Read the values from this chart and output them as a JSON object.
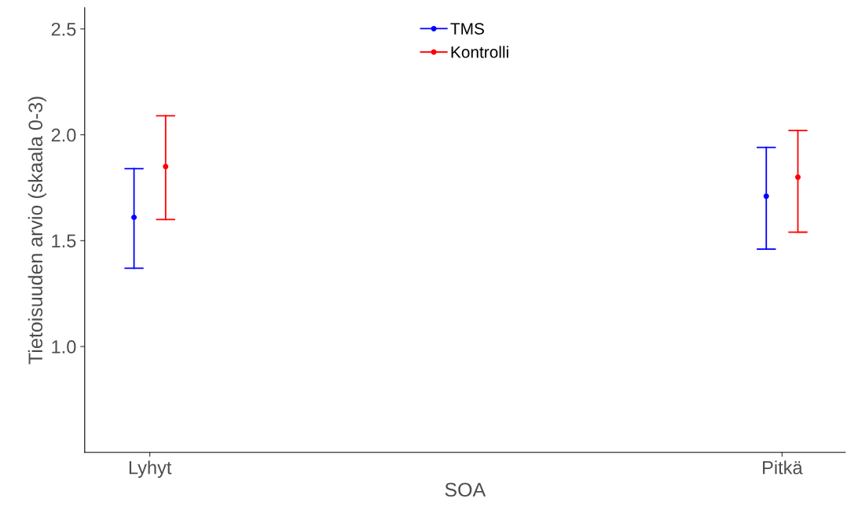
{
  "chart_data": {
    "type": "scatter",
    "xlabel": "SOA",
    "ylabel": "Tietoisuuden arvio (skaala 0-3)",
    "categories": [
      "Lyhyt",
      "Pitkä"
    ],
    "series": [
      {
        "name": "TMS",
        "color": "#0000ff",
        "values": [
          1.61,
          1.71
        ],
        "errors": [
          [
            1.37,
            1.84
          ],
          [
            1.46,
            1.94
          ]
        ]
      },
      {
        "name": "Kontrolli",
        "color": "#ff0000",
        "values": [
          1.85,
          1.8
        ],
        "errors": [
          [
            1.6,
            2.09
          ],
          [
            1.54,
            2.02
          ]
        ]
      }
    ],
    "ylim": [
      0.5,
      2.6
    ],
    "yticks": [
      {
        "value": 1.0,
        "label": "1.0"
      },
      {
        "value": 1.5,
        "label": "1.5"
      },
      {
        "value": 2.0,
        "label": "2.0"
      },
      {
        "value": 2.5,
        "label": "2.5"
      }
    ],
    "grid": false,
    "legend": "top",
    "marker": "circle"
  }
}
